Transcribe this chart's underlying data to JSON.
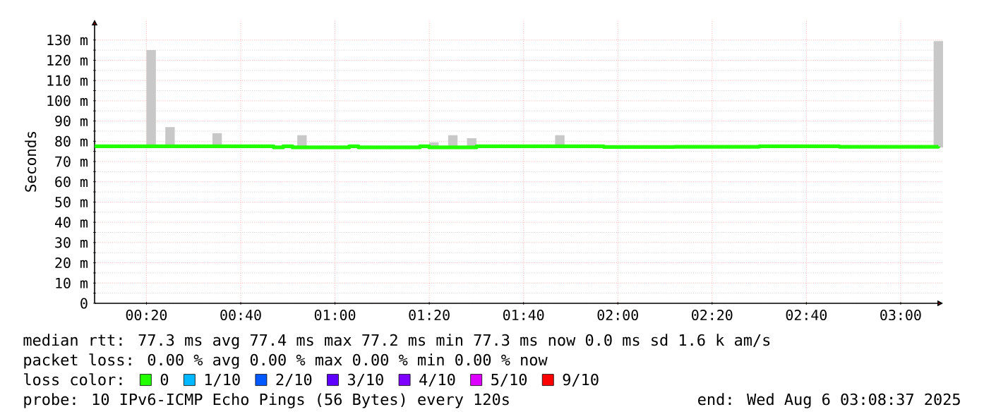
{
  "chart_data": {
    "type": "step",
    "ylabel": "Seconds",
    "xlim": [
      0.15,
      3.15
    ],
    "ylim": [
      0,
      140
    ],
    "xticks": [
      {
        "value": 0.3333,
        "label": "00:20"
      },
      {
        "value": 0.6667,
        "label": "00:40"
      },
      {
        "value": 1.0,
        "label": "01:00"
      },
      {
        "value": 1.3333,
        "label": "01:20"
      },
      {
        "value": 1.6667,
        "label": "01:40"
      },
      {
        "value": 2.0,
        "label": "02:00"
      },
      {
        "value": 2.3333,
        "label": "02:20"
      },
      {
        "value": 2.6667,
        "label": "02:40"
      },
      {
        "value": 3.0,
        "label": "03:00"
      }
    ],
    "yticks": [
      0,
      {
        "value": 10,
        "label": "10 m"
      },
      {
        "value": 20,
        "label": "20 m"
      },
      {
        "value": 30,
        "label": "30 m"
      },
      {
        "value": 40,
        "label": "40 m"
      },
      {
        "value": 50,
        "label": "50 m"
      },
      {
        "value": 60,
        "label": "60 m"
      },
      {
        "value": 70,
        "label": "70 m"
      },
      {
        "value": 80,
        "label": "80 m"
      },
      {
        "value": 90,
        "label": "90 m"
      },
      {
        "value": 100,
        "label": "100 m"
      },
      {
        "value": 110,
        "label": "110 m"
      },
      {
        "value": 120,
        "label": "120 m"
      },
      {
        "value": 130,
        "label": "130 m"
      }
    ],
    "grid": true,
    "legend": "bottom",
    "legend_title": "loss color:",
    "series": [
      {
        "type": "bar",
        "color": "#c8c8c8",
        "x": [
          0.35,
          0.4167,
          0.5833,
          0.8833,
          1.35,
          1.4167,
          1.4833,
          1.795,
          3.1333
        ],
        "base": [
          77,
          77,
          77,
          77,
          77,
          77,
          77,
          77,
          77
        ],
        "values": [
          48,
          10,
          7,
          6,
          2.5,
          6,
          4.5,
          6,
          52.5
        ]
      },
      {
        "name": "0",
        "color": "#22ff00",
        "x": [
          0.15,
          0.75,
          0.7833,
          0.8167,
          0.85,
          1.05,
          1.0833,
          1.3,
          1.3333,
          1.5,
          1.95,
          2.2,
          2.5,
          2.7833,
          3.1333
        ],
        "values": [
          77.5,
          77.5,
          77,
          77.5,
          77,
          77.5,
          77,
          77.5,
          77,
          77.5,
          77.2,
          77.3,
          77.5,
          77.3,
          77.5
        ]
      },
      {
        "name": "1/10",
        "color": "#00b8ff",
        "values": [
          null
        ]
      },
      {
        "name": "2/10",
        "color": "#0059ff",
        "values": [
          null
        ]
      },
      {
        "name": "3/10",
        "color": "#5e00ff",
        "values": [
          null
        ]
      },
      {
        "name": "4/10",
        "color": "#7e00ff",
        "values": [
          null
        ]
      },
      {
        "name": "5/10",
        "color": "#dd00ff",
        "values": [
          null
        ]
      },
      {
        "name": "9/10",
        "color": "#ff0000",
        "values": [
          null
        ]
      }
    ],
    "annotations": [
      "median rtt:  77.3 ms avg  77.4 ms max  77.2 ms min  77.3 ms now  0.0 ms sd  1.6 k am/s",
      "packet loss: 0.00 % avg  0.00 % max  0.00 % min  0.00 % now",
      "probe:       10 IPv6-ICMP Echo Pings (56 Bytes) every 120s",
      "end: Wed Aug  6 03:08:37 2025"
    ]
  }
}
